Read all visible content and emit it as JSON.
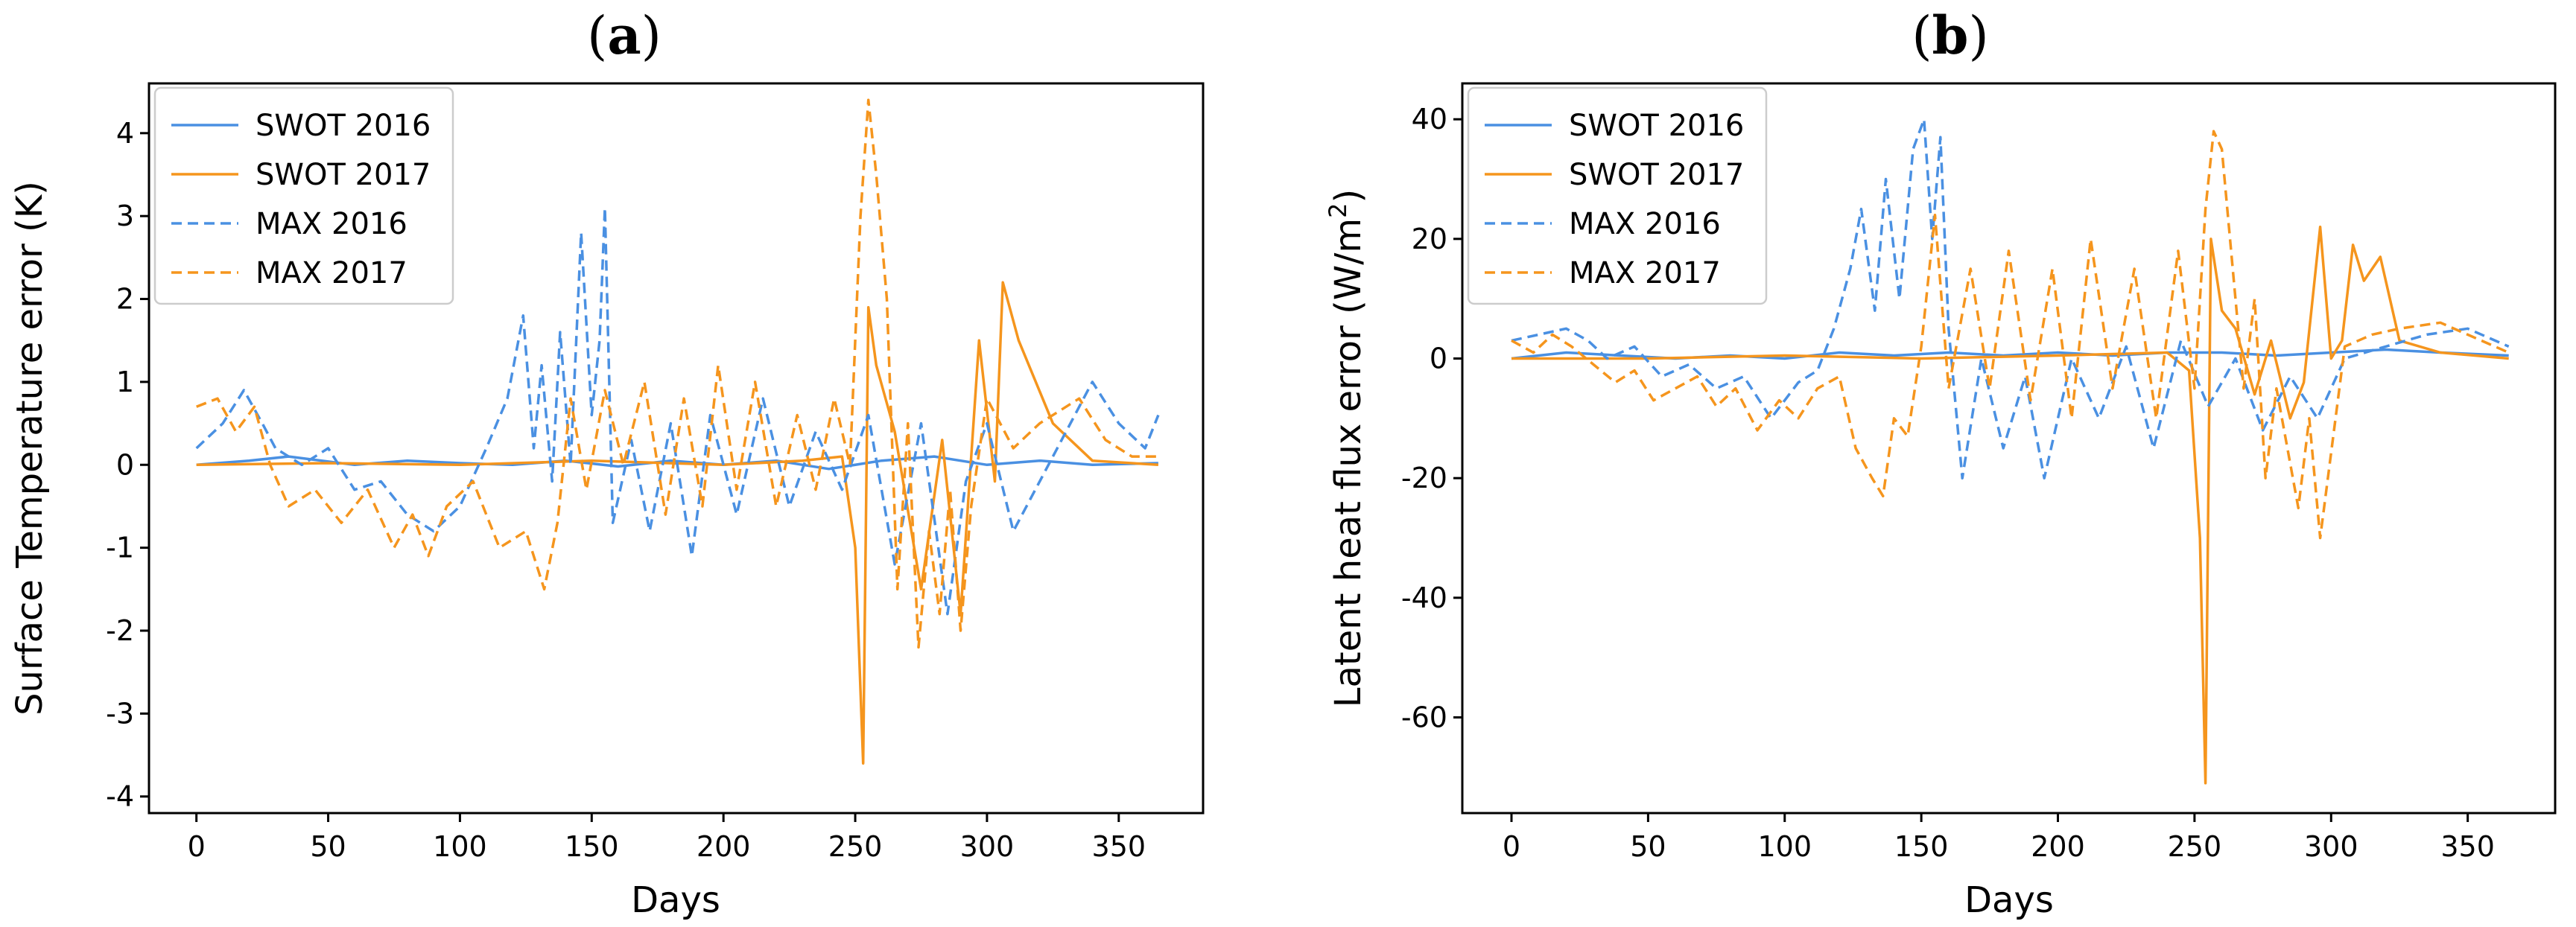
{
  "chart_data": [
    {
      "type": "line",
      "panel_label": "a",
      "title": "(a)",
      "xlabel": "Days",
      "ylabel": "Surface Temperature error (K)",
      "xlim": [
        -18,
        382
      ],
      "ylim": [
        -4.2,
        4.6
      ],
      "xticks": [
        0,
        50,
        100,
        150,
        200,
        250,
        300,
        350
      ],
      "yticks": [
        -4,
        -3,
        -2,
        -1,
        0,
        1,
        2,
        3,
        4
      ],
      "legend": [
        "SWOT 2016",
        "SWOT 2017",
        "MAX 2016",
        "MAX 2017"
      ],
      "legend_position": "top-left",
      "series": [
        {
          "name": "SWOT 2016",
          "color": "#4a90e2",
          "dash": "solid",
          "x": [
            0,
            20,
            35,
            60,
            80,
            100,
            120,
            140,
            160,
            180,
            200,
            220,
            240,
            260,
            280,
            300,
            320,
            340,
            365
          ],
          "y": [
            0,
            0.05,
            0.1,
            0.0,
            0.05,
            0.02,
            0.0,
            0.05,
            -0.02,
            0.05,
            0.0,
            0.05,
            -0.05,
            0.05,
            0.1,
            0.0,
            0.05,
            0.0,
            0.02
          ]
        },
        {
          "name": "SWOT 2017",
          "color": "#f5951d",
          "dash": "solid",
          "x": [
            0,
            50,
            100,
            150,
            200,
            230,
            245,
            250,
            253,
            255,
            258,
            265,
            275,
            283,
            290,
            297,
            303,
            306,
            312,
            325,
            340,
            365
          ],
          "y": [
            0,
            0.02,
            0.0,
            0.05,
            0.0,
            0.05,
            0.1,
            -1.0,
            -3.6,
            1.9,
            1.2,
            0.4,
            -1.5,
            0.3,
            -1.8,
            1.5,
            -0.2,
            2.2,
            1.5,
            0.5,
            0.05,
            0.0
          ]
        },
        {
          "name": "MAX 2016",
          "color": "#4a90e2",
          "dash": "dashed",
          "x": [
            0,
            10,
            18,
            25,
            30,
            40,
            50,
            60,
            70,
            80,
            90,
            100,
            110,
            118,
            124,
            128,
            131,
            135,
            138,
            142,
            146,
            150,
            153,
            155,
            158,
            165,
            172,
            180,
            188,
            195,
            205,
            215,
            225,
            235,
            245,
            255,
            265,
            275,
            285,
            292,
            300,
            310,
            325,
            340,
            350,
            360,
            365
          ],
          "y": [
            0.2,
            0.5,
            0.9,
            0.5,
            0.2,
            0.0,
            0.2,
            -0.3,
            -0.2,
            -0.6,
            -0.8,
            -0.5,
            0.2,
            0.8,
            1.8,
            0.2,
            1.2,
            -0.2,
            1.6,
            0.0,
            2.8,
            0.6,
            1.5,
            3.1,
            -0.7,
            0.3,
            -0.8,
            0.5,
            -1.1,
            0.6,
            -0.6,
            0.8,
            -0.5,
            0.4,
            -0.3,
            0.6,
            -1.2,
            0.5,
            -1.8,
            -0.2,
            0.5,
            -0.8,
            0.1,
            1.0,
            0.5,
            0.2,
            0.6
          ]
        },
        {
          "name": "MAX 2017",
          "color": "#f5951d",
          "dash": "dashed",
          "x": [
            0,
            8,
            15,
            22,
            28,
            35,
            45,
            55,
            65,
            75,
            82,
            88,
            95,
            105,
            115,
            125,
            132,
            137,
            142,
            148,
            155,
            162,
            170,
            178,
            185,
            192,
            198,
            205,
            212,
            220,
            228,
            235,
            242,
            248,
            252,
            255,
            258,
            262,
            266,
            270,
            274,
            278,
            282,
            286,
            290,
            294,
            300,
            310,
            320,
            335,
            345,
            355,
            365
          ],
          "y": [
            0.7,
            0.8,
            0.4,
            0.7,
            0.0,
            -0.5,
            -0.3,
            -0.7,
            -0.3,
            -1.0,
            -0.6,
            -1.1,
            -0.5,
            -0.2,
            -1.0,
            -0.8,
            -1.5,
            -0.7,
            0.8,
            -0.3,
            0.9,
            0.0,
            1.0,
            -0.6,
            0.8,
            -0.5,
            1.2,
            -0.3,
            1.0,
            -0.5,
            0.6,
            -0.3,
            0.8,
            0.0,
            3.0,
            4.4,
            3.5,
            2.0,
            -1.5,
            0.5,
            -2.2,
            -0.8,
            -1.8,
            -0.3,
            -2.0,
            -0.5,
            0.8,
            0.2,
            0.5,
            0.8,
            0.3,
            0.1,
            0.1
          ]
        }
      ]
    },
    {
      "type": "line",
      "panel_label": "b",
      "title": "(b)",
      "xlabel": "Days",
      "ylabel": "Latent heat flux error (W/m²)",
      "ylabel_main": "Latent heat flux error (W/m",
      "ylabel_sup": "2",
      "ylabel_end": ")",
      "xlim": [
        -18,
        382
      ],
      "ylim": [
        -76,
        46
      ],
      "xticks": [
        0,
        50,
        100,
        150,
        200,
        250,
        300,
        350
      ],
      "yticks": [
        -60,
        -40,
        -20,
        0,
        20,
        40
      ],
      "legend": [
        "SWOT 2016",
        "SWOT 2017",
        "MAX 2016",
        "MAX 2017"
      ],
      "legend_position": "top-left",
      "series": [
        {
          "name": "SWOT 2016",
          "color": "#4a90e2",
          "dash": "solid",
          "x": [
            0,
            20,
            40,
            60,
            80,
            100,
            120,
            140,
            160,
            180,
            200,
            220,
            240,
            260,
            280,
            300,
            320,
            340,
            365
          ],
          "y": [
            0,
            1,
            0.5,
            0,
            0.5,
            0,
            1,
            0.5,
            1,
            0.5,
            1,
            0.5,
            1,
            1,
            0.5,
            1,
            1.5,
            1,
            0.5
          ]
        },
        {
          "name": "SWOT 2017",
          "color": "#f5951d",
          "dash": "solid",
          "x": [
            0,
            50,
            100,
            150,
            200,
            240,
            248,
            252,
            254,
            256,
            260,
            265,
            272,
            278,
            285,
            290,
            296,
            300,
            304,
            308,
            312,
            318,
            325,
            340,
            365
          ],
          "y": [
            0,
            0,
            0.5,
            0,
            0.5,
            1,
            -2,
            -30,
            -71,
            20,
            8,
            5,
            -6,
            3,
            -10,
            -4,
            22,
            0,
            3,
            19,
            13,
            17,
            3,
            1,
            0
          ]
        },
        {
          "name": "MAX 2016",
          "color": "#4a90e2",
          "dash": "dashed",
          "x": [
            0,
            10,
            20,
            28,
            35,
            45,
            55,
            65,
            75,
            85,
            95,
            105,
            112,
            118,
            124,
            128,
            133,
            137,
            142,
            147,
            151,
            154,
            157,
            160,
            165,
            172,
            180,
            188,
            195,
            205,
            215,
            225,
            235,
            245,
            255,
            265,
            275,
            285,
            295,
            305,
            320,
            335,
            350,
            365
          ],
          "y": [
            3,
            4,
            5,
            3,
            0,
            2,
            -3,
            -1,
            -5,
            -3,
            -10,
            -4,
            -2,
            5,
            15,
            25,
            8,
            30,
            10,
            35,
            40,
            20,
            37,
            5,
            -20,
            0,
            -15,
            -3,
            -20,
            0,
            -10,
            2,
            -15,
            3,
            -8,
            0,
            -12,
            -3,
            -10,
            0,
            2,
            4,
            5,
            2
          ]
        },
        {
          "name": "MAX 2017",
          "color": "#f5951d",
          "dash": "dashed",
          "x": [
            0,
            8,
            15,
            22,
            30,
            38,
            45,
            52,
            60,
            68,
            75,
            82,
            90,
            98,
            105,
            112,
            120,
            126,
            132,
            136,
            140,
            145,
            150,
            155,
            160,
            168,
            175,
            182,
            190,
            198,
            205,
            212,
            220,
            228,
            236,
            244,
            250,
            254,
            257,
            260,
            264,
            268,
            272,
            276,
            280,
            284,
            288,
            292,
            296,
            305,
            315,
            325,
            340,
            350,
            365
          ],
          "y": [
            3,
            1,
            4,
            2,
            -1,
            -4,
            -2,
            -7,
            -5,
            -3,
            -8,
            -5,
            -12,
            -7,
            -10,
            -5,
            -3,
            -15,
            -20,
            -23,
            -10,
            -13,
            2,
            24,
            -5,
            15,
            -5,
            18,
            -7,
            15,
            -10,
            20,
            -5,
            15,
            -10,
            18,
            -5,
            25,
            38,
            35,
            15,
            -5,
            10,
            -20,
            -5,
            -15,
            -25,
            -10,
            -30,
            2,
            4,
            5,
            6,
            4,
            1
          ]
        }
      ]
    }
  ]
}
